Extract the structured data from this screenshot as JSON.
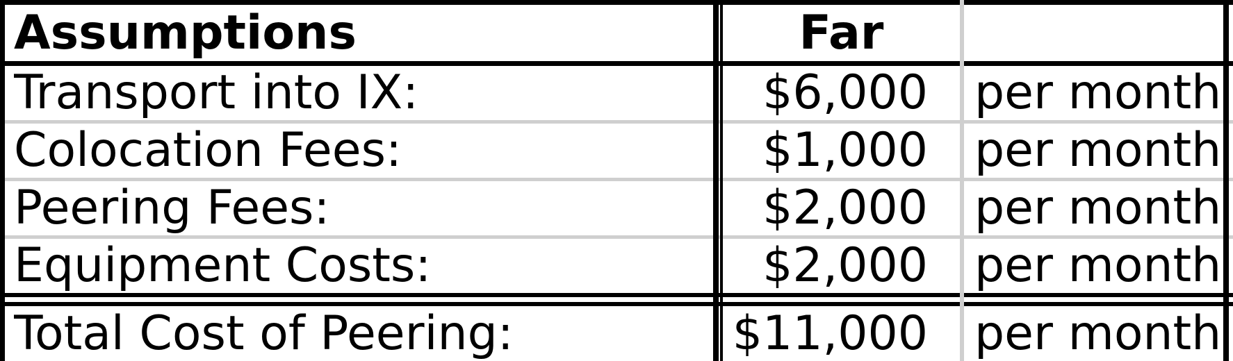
{
  "table": {
    "header": {
      "label": "Assumptions",
      "column": "Far",
      "unit": ""
    },
    "rows": [
      {
        "label": "Transport into IX:",
        "value": "$6,000",
        "unit": "per month"
      },
      {
        "label": "Colocation Fees:",
        "value": "$1,000",
        "unit": "per month"
      },
      {
        "label": "Peering Fees:",
        "value": "$2,000",
        "unit": "per month"
      },
      {
        "label": "Equipment Costs:",
        "value": "$2,000",
        "unit": "per month"
      }
    ],
    "total": {
      "label": "Total Cost of Peering:",
      "value": "$11,000",
      "unit": "per month"
    }
  }
}
